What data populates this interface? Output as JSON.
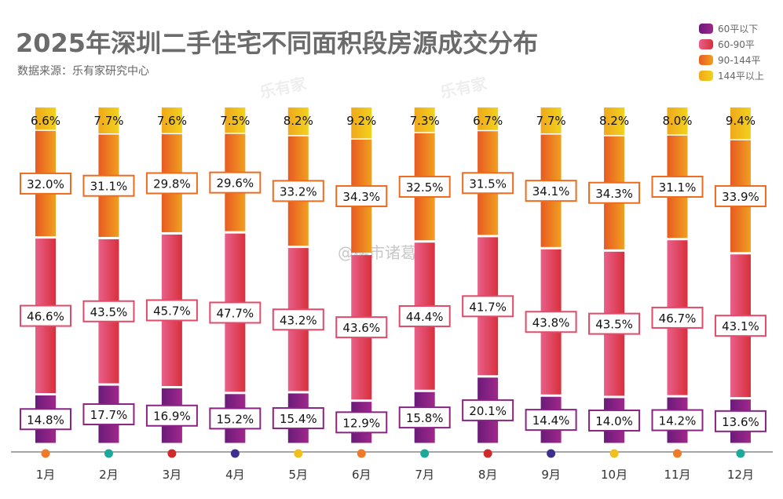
{
  "title": "2025年深圳二手住宅不同面积段房源成交分布",
  "source": "数据来源：乐有家研究中心",
  "watermark": "@楼市诸葛",
  "brand_watermark": "乐有家",
  "chart_data": {
    "type": "bar",
    "stacked": true,
    "title": "2025年深圳二手住宅不同面积段房源成交分布",
    "categories": [
      "1月",
      "2月",
      "3月",
      "4月",
      "5月",
      "6月",
      "7月",
      "8月",
      "9月",
      "10月",
      "11月",
      "12月"
    ],
    "ylim": [
      0,
      100
    ],
    "grid": false,
    "legend_position": "top-right",
    "series": [
      {
        "name": "60平以下",
        "color": "#7d1f7e",
        "values": [
          14.8,
          17.7,
          16.9,
          15.2,
          15.4,
          12.9,
          15.8,
          20.1,
          14.4,
          14.0,
          14.2,
          13.6
        ]
      },
      {
        "name": "60-90平",
        "color": "#e24a68",
        "values": [
          46.6,
          43.5,
          45.7,
          47.7,
          43.2,
          43.6,
          44.4,
          41.7,
          43.8,
          43.5,
          46.7,
          43.1
        ]
      },
      {
        "name": "90-144平",
        "color": "#ee6b1f",
        "values": [
          32.0,
          31.1,
          29.8,
          29.6,
          33.2,
          34.3,
          32.5,
          31.5,
          34.1,
          34.3,
          31.1,
          33.9
        ]
      },
      {
        "name": "144平以上",
        "color": "#f2b61c",
        "values": [
          6.6,
          7.7,
          7.6,
          7.5,
          8.2,
          9.2,
          7.3,
          6.7,
          7.7,
          8.2,
          8.0,
          9.4
        ]
      }
    ],
    "axis_dot_colors": [
      "#ef7b27",
      "#1aa99a",
      "#d22a2a",
      "#3d2f8f",
      "#f2c01c",
      "#ef7b27",
      "#1aa99a",
      "#d22a2a",
      "#3d2f8f",
      "#f2c01c",
      "#ef7b27",
      "#1aa99a"
    ]
  }
}
